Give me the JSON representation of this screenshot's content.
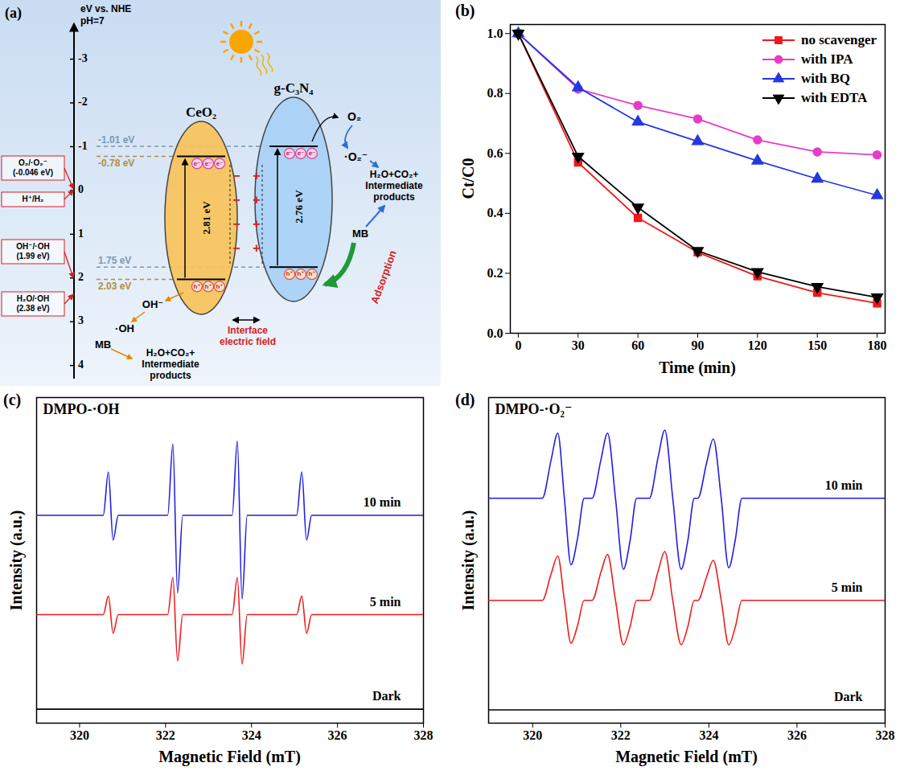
{
  "diagram": {
    "panel_label": "(a)",
    "energy_axis": {
      "label": "eV vs. NHE",
      "condition": "pH=7",
      "lim": [
        -3.8,
        4.3
      ],
      "ticks": [
        -3,
        -2,
        -1,
        0,
        1,
        2,
        3,
        4
      ]
    },
    "semiconductors": [
      {
        "name": "CeO₂",
        "cb": -0.78,
        "vb": 2.03,
        "gap_label": "2.81 eV",
        "cb_label": "-0.78 eV",
        "vb_label": "2.03 eV",
        "color": "#f7c25a"
      },
      {
        "name": "g-C₃N₄",
        "cb": -1.01,
        "vb": 1.75,
        "gap_label": "2.76 eV",
        "cb_label": "-1.01 eV",
        "vb_label": "1.75 eV",
        "color": "#a8d1f5"
      }
    ],
    "references": [
      {
        "label": "O₂/·O₂⁻ (-0.046 eV)",
        "value": -0.046
      },
      {
        "label": "H⁺/H₂",
        "value": 0
      },
      {
        "label": "OH⁻/·OH (1.99 eV)",
        "value": 1.99
      },
      {
        "label": "H₂O/·OH (2.38 eV)",
        "value": 2.38
      }
    ],
    "carriers": {
      "electron": "e⁻",
      "hole": "h⁺"
    },
    "interface": {
      "label": "Interface electric field",
      "negative": "−",
      "positive": "+"
    },
    "reduction": {
      "reactant": "O₂",
      "radical": "·O₂⁻",
      "pollutant": "MB",
      "products": "H₂O+CO₂+ Intermediate products"
    },
    "oxidation": {
      "reactant": "OH⁻",
      "radical": "·OH",
      "pollutant": "MB",
      "products": "H₂O+CO₂+ Intermediate products"
    },
    "adsorption": "Adsorption"
  },
  "chart_data": [
    {
      "type": "line",
      "panel_label": "(b)",
      "x_label": "Time (min)",
      "y_label": "Ct/C0",
      "x": [
        0,
        30,
        60,
        90,
        120,
        150,
        180
      ],
      "xlim": [
        -4,
        184
      ],
      "xticks": [
        0,
        30,
        60,
        90,
        120,
        150,
        180
      ],
      "ylim": [
        0,
        1.03
      ],
      "yticks": [
        {
          "value": 0,
          "label": "0.0"
        },
        0.2,
        0.4,
        0.6,
        0.8,
        {
          "value": 1,
          "label": "1.0"
        }
      ],
      "legend": "top-right",
      "series": [
        {
          "name": "no scavenger",
          "color": "#f01818",
          "marker": "square",
          "values": [
            1.0,
            0.57,
            0.385,
            0.27,
            0.19,
            0.135,
            0.1
          ]
        },
        {
          "name": "with IPA",
          "color": "#e83cc8",
          "marker": "circle",
          "values": [
            1.0,
            0.815,
            0.76,
            0.715,
            0.645,
            0.605,
            0.595
          ]
        },
        {
          "name": "with BQ",
          "color": "#2438e0",
          "marker": "triangle-up",
          "values": [
            1.0,
            0.82,
            0.705,
            0.64,
            0.575,
            0.515,
            0.46
          ]
        },
        {
          "name": "with EDTA",
          "color": "#000000",
          "marker": "triangle-down",
          "values": [
            1.0,
            0.59,
            0.42,
            0.275,
            0.205,
            0.155,
            0.12
          ]
        }
      ]
    },
    {
      "type": "line",
      "panel_label": "(c)",
      "title": "DMPO-·OH",
      "x_label": "Magnetic Field (mT)",
      "y_label": "Intensity (a.u.)",
      "tick_labels": "x",
      "x": [
        319,
        320.55,
        320.67,
        320.78,
        320.9,
        322.05,
        322.17,
        322.28,
        322.4,
        323.55,
        323.67,
        323.78,
        323.9,
        325.05,
        325.17,
        325.28,
        325.4,
        328
      ],
      "xlim": [
        319,
        328
      ],
      "xticks": [
        320,
        322,
        324,
        326,
        328
      ],
      "ylim": [
        0,
        10.5
      ],
      "yticks": [],
      "series": [
        {
          "name": "10 min",
          "color": "#1f1fe6",
          "values": [
            6.7,
            6.7,
            8.1,
            5.9,
            6.7,
            6.7,
            9.0,
            4.2,
            6.7,
            6.7,
            9.1,
            4.0,
            6.7,
            6.7,
            8.1,
            5.9,
            6.7,
            6.7
          ]
        },
        {
          "name": "5 min",
          "color": "#ee1c1c",
          "values": [
            3.5,
            3.5,
            4.1,
            2.9,
            3.5,
            3.5,
            4.7,
            2.0,
            3.5,
            3.5,
            4.7,
            1.9,
            3.5,
            3.5,
            4.1,
            2.9,
            3.5,
            3.5
          ]
        },
        {
          "name": "Dark",
          "color": "#000000",
          "values": [
            0.45,
            0.45,
            0.45,
            0.45,
            0.45,
            0.45,
            0.45,
            0.45,
            0.45,
            0.45,
            0.45,
            0.45,
            0.45,
            0.45,
            0.45,
            0.45,
            0.45,
            0.45
          ]
        }
      ]
    },
    {
      "type": "line",
      "panel_label": "(d)",
      "title": "DMPO-·O₂⁻",
      "x_label": "Magnetic Field (mT)",
      "y_label": "Intensity (a.u.)",
      "tick_labels": "x",
      "x": [
        319,
        320.22,
        320.42,
        320.57,
        320.72,
        320.87,
        321.02,
        321.17,
        321.35,
        321.55,
        321.7,
        321.88,
        322.06,
        322.21,
        322.36,
        322.65,
        322.85,
        323.0,
        323.18,
        323.37,
        323.52,
        323.67,
        323.75,
        323.95,
        324.1,
        324.28,
        324.45,
        324.6,
        324.75,
        328
      ],
      "xlim": [
        319,
        328
      ],
      "xticks": [
        320,
        322,
        324,
        326,
        328
      ],
      "ylim": [
        0,
        11
      ],
      "yticks": [],
      "series": [
        {
          "name": "10 min",
          "color": "#1f1fe6",
          "values": [
            7.6,
            7.6,
            8.9,
            9.8,
            7.6,
            5.35,
            6.25,
            7.6,
            7.6,
            8.9,
            9.8,
            7.6,
            5.2,
            6.15,
            7.6,
            7.6,
            9.0,
            9.9,
            7.6,
            5.2,
            6.15,
            7.6,
            7.6,
            8.8,
            9.6,
            7.6,
            5.25,
            6.2,
            7.6,
            7.6
          ]
        },
        {
          "name": "5 min",
          "color": "#ee1c1c",
          "values": [
            4.15,
            4.15,
            5.05,
            5.65,
            4.15,
            2.7,
            3.3,
            4.15,
            4.15,
            5.1,
            5.7,
            4.15,
            2.65,
            3.25,
            4.15,
            4.15,
            5.15,
            5.8,
            4.15,
            2.65,
            3.25,
            4.15,
            4.15,
            4.95,
            5.5,
            4.15,
            2.65,
            3.25,
            4.15,
            4.15
          ]
        },
        {
          "name": "Dark",
          "color": "#000000",
          "values": [
            0.45,
            0.45,
            0.45,
            0.45,
            0.45,
            0.45,
            0.45,
            0.45,
            0.45,
            0.45,
            0.45,
            0.45,
            0.45,
            0.45,
            0.45,
            0.45,
            0.45,
            0.45,
            0.45,
            0.45,
            0.45,
            0.45,
            0.45,
            0.45,
            0.45,
            0.45,
            0.45,
            0.45,
            0.45,
            0.45
          ]
        }
      ]
    }
  ]
}
